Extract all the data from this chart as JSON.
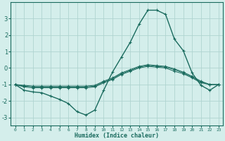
{
  "xlabel": "Humidex (Indice chaleur)",
  "ylabel": "",
  "bg_color": "#d4eeeb",
  "grid_color": "#b0d4d0",
  "line_color": "#1a6b5e",
  "xlim": [
    -0.5,
    23.5
  ],
  "ylim": [
    -3.5,
    4.0
  ],
  "xticks": [
    0,
    1,
    2,
    3,
    4,
    5,
    6,
    7,
    8,
    9,
    10,
    11,
    12,
    13,
    14,
    15,
    16,
    17,
    18,
    19,
    20,
    21,
    22,
    23
  ],
  "yticks": [
    -3,
    -2,
    -1,
    0,
    1,
    2,
    3
  ],
  "lines": [
    {
      "x": [
        0,
        1,
        2,
        3,
        4,
        5,
        6,
        7,
        8,
        9,
        10,
        11,
        12,
        13,
        14,
        15,
        16,
        17,
        18,
        19,
        20,
        21,
        22,
        23
      ],
      "y": [
        -1.0,
        -1.35,
        -1.45,
        -1.5,
        -1.7,
        -1.9,
        -2.15,
        -2.65,
        -2.85,
        -2.55,
        -1.35,
        -0.25,
        0.65,
        1.55,
        2.65,
        3.5,
        3.5,
        3.25,
        1.75,
        1.05,
        -0.3,
        -1.05,
        -1.35,
        -1.0
      ]
    },
    {
      "x": [
        0,
        1,
        2,
        3,
        4,
        5,
        6,
        7,
        8,
        9,
        10,
        11,
        12,
        13,
        14,
        15,
        16,
        17,
        18,
        19,
        20,
        21,
        22,
        23
      ],
      "y": [
        -1.0,
        -1.15,
        -1.2,
        -1.2,
        -1.2,
        -1.2,
        -1.2,
        -1.2,
        -1.2,
        -1.15,
        -0.9,
        -0.7,
        -0.4,
        -0.2,
        0.0,
        0.1,
        0.05,
        0.0,
        -0.2,
        -0.35,
        -0.6,
        -0.9,
        -1.0,
        -1.0
      ]
    },
    {
      "x": [
        0,
        1,
        2,
        3,
        4,
        5,
        6,
        7,
        8,
        9,
        10,
        11,
        12,
        13,
        14,
        15,
        16,
        17,
        18,
        19,
        20,
        21,
        22,
        23
      ],
      "y": [
        -1.0,
        -1.1,
        -1.15,
        -1.15,
        -1.15,
        -1.15,
        -1.15,
        -1.15,
        -1.15,
        -1.1,
        -0.85,
        -0.65,
        -0.35,
        -0.15,
        0.05,
        0.15,
        0.1,
        0.05,
        -0.1,
        -0.3,
        -0.55,
        -0.85,
        -1.0,
        -1.0
      ]
    },
    {
      "x": [
        0,
        1,
        2,
        3,
        4,
        5,
        6,
        7,
        8,
        9,
        10,
        11,
        12,
        13,
        14,
        15,
        16,
        17,
        18,
        19,
        20,
        21,
        22,
        23
      ],
      "y": [
        -1.0,
        -1.05,
        -1.1,
        -1.1,
        -1.1,
        -1.1,
        -1.1,
        -1.1,
        -1.1,
        -1.05,
        -0.8,
        -0.6,
        -0.3,
        -0.1,
        0.1,
        0.2,
        0.15,
        0.1,
        -0.05,
        -0.25,
        -0.5,
        -0.8,
        -1.0,
        -1.0
      ]
    }
  ]
}
